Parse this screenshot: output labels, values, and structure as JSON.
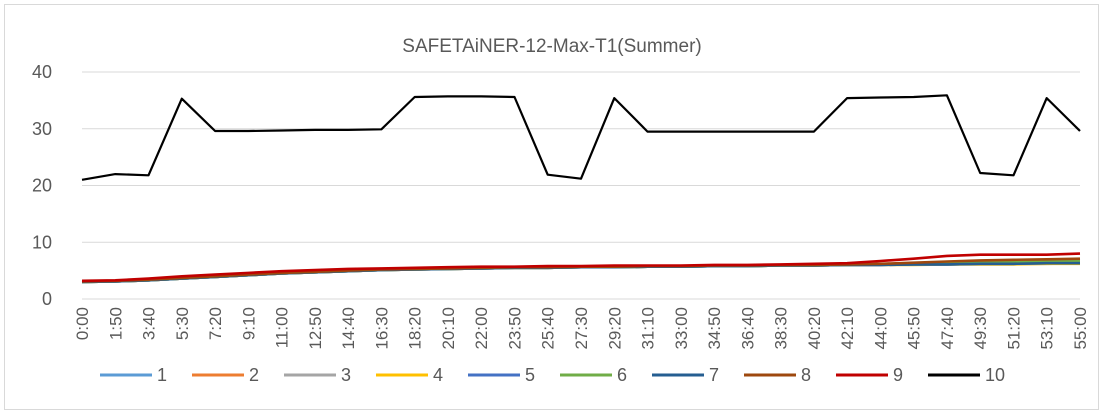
{
  "chart_data": {
    "type": "line",
    "title": "SAFETAiNER-12-Max-T1(Summer)",
    "xlabel": "",
    "ylabel": "",
    "ylim": [
      0,
      40
    ],
    "yticks": [
      0,
      10,
      20,
      30,
      40
    ],
    "grid": true,
    "legend_position": "bottom",
    "categories": [
      "0:00",
      "1:50",
      "3:40",
      "5:30",
      "7:20",
      "9:10",
      "11:00",
      "12:50",
      "14:40",
      "16:30",
      "18:20",
      "20:10",
      "22:00",
      "23:50",
      "25:40",
      "27:30",
      "29:20",
      "31:10",
      "33:00",
      "34:50",
      "36:40",
      "38:30",
      "40:20",
      "42:10",
      "44:00",
      "45:50",
      "47:40",
      "49:30",
      "51:20",
      "53:10",
      "55:00"
    ],
    "series": [
      {
        "name": "1",
        "color": "#5b9bd5",
        "values": [
          3.0,
          3.1,
          3.3,
          3.6,
          3.9,
          4.2,
          4.5,
          4.7,
          4.9,
          5.1,
          5.2,
          5.3,
          5.4,
          5.5,
          5.5,
          5.6,
          5.6,
          5.7,
          5.7,
          5.8,
          5.8,
          5.9,
          5.9,
          6.0,
          6.0,
          6.1,
          6.1,
          6.2,
          6.2,
          6.3,
          6.3
        ]
      },
      {
        "name": "2",
        "color": "#ed7d31",
        "values": [
          3.0,
          3.1,
          3.3,
          3.6,
          3.9,
          4.2,
          4.5,
          4.7,
          4.9,
          5.1,
          5.2,
          5.3,
          5.4,
          5.5,
          5.5,
          5.6,
          5.6,
          5.7,
          5.7,
          5.8,
          5.8,
          5.9,
          5.9,
          6.0,
          6.1,
          6.2,
          6.3,
          6.4,
          6.4,
          6.5,
          6.5
        ]
      },
      {
        "name": "3",
        "color": "#a5a5a5",
        "values": [
          3.0,
          3.1,
          3.3,
          3.6,
          3.9,
          4.2,
          4.5,
          4.7,
          4.9,
          5.1,
          5.2,
          5.3,
          5.4,
          5.5,
          5.5,
          5.6,
          5.6,
          5.7,
          5.7,
          5.8,
          5.8,
          5.9,
          5.9,
          6.0,
          6.0,
          6.1,
          6.1,
          6.2,
          6.2,
          6.2,
          6.3
        ]
      },
      {
        "name": "4",
        "color": "#ffc000",
        "values": [
          3.0,
          3.1,
          3.3,
          3.6,
          3.9,
          4.2,
          4.5,
          4.7,
          4.9,
          5.1,
          5.2,
          5.3,
          5.4,
          5.5,
          5.5,
          5.6,
          5.6,
          5.7,
          5.7,
          5.8,
          5.8,
          5.9,
          5.9,
          6.0,
          6.0,
          6.0,
          6.1,
          6.1,
          6.1,
          6.2,
          6.2
        ]
      },
      {
        "name": "5",
        "color": "#4472c4",
        "values": [
          3.0,
          3.1,
          3.3,
          3.6,
          3.9,
          4.2,
          4.5,
          4.7,
          4.9,
          5.1,
          5.2,
          5.3,
          5.4,
          5.5,
          5.5,
          5.6,
          5.6,
          5.7,
          5.7,
          5.8,
          5.8,
          5.9,
          5.9,
          6.0,
          6.0,
          6.1,
          6.1,
          6.2,
          6.2,
          6.3,
          6.3
        ]
      },
      {
        "name": "6",
        "color": "#70ad47",
        "values": [
          3.0,
          3.1,
          3.3,
          3.6,
          3.9,
          4.2,
          4.5,
          4.7,
          4.9,
          5.1,
          5.2,
          5.3,
          5.4,
          5.5,
          5.5,
          5.6,
          5.6,
          5.7,
          5.7,
          5.8,
          5.8,
          5.9,
          5.9,
          6.0,
          6.1,
          6.2,
          6.3,
          6.4,
          6.5,
          6.6,
          6.7
        ]
      },
      {
        "name": "7",
        "color": "#255e91",
        "values": [
          3.0,
          3.1,
          3.3,
          3.6,
          3.9,
          4.2,
          4.5,
          4.7,
          4.9,
          5.1,
          5.2,
          5.3,
          5.4,
          5.5,
          5.5,
          5.6,
          5.6,
          5.7,
          5.7,
          5.8,
          5.8,
          5.9,
          5.9,
          6.0,
          6.0,
          6.1,
          6.1,
          6.2,
          6.2,
          6.3,
          6.3
        ]
      },
      {
        "name": "8",
        "color": "#9e480e",
        "values": [
          3.1,
          3.2,
          3.4,
          3.7,
          4.0,
          4.3,
          4.6,
          4.8,
          5.0,
          5.2,
          5.3,
          5.4,
          5.5,
          5.6,
          5.6,
          5.7,
          5.7,
          5.8,
          5.8,
          5.9,
          5.9,
          6.0,
          6.0,
          6.1,
          6.2,
          6.4,
          6.6,
          6.8,
          6.9,
          7.0,
          7.1
        ]
      },
      {
        "name": "9",
        "color": "#c00000",
        "values": [
          3.2,
          3.3,
          3.6,
          4.0,
          4.3,
          4.6,
          4.9,
          5.1,
          5.3,
          5.4,
          5.5,
          5.6,
          5.7,
          5.7,
          5.8,
          5.8,
          5.9,
          5.9,
          5.9,
          6.0,
          6.0,
          6.1,
          6.2,
          6.3,
          6.7,
          7.1,
          7.6,
          7.8,
          7.8,
          7.8,
          8.0
        ]
      },
      {
        "name": "10",
        "color": "#000000",
        "values": [
          21.0,
          22.0,
          21.8,
          35.3,
          29.6,
          29.6,
          29.7,
          29.8,
          29.8,
          29.9,
          35.6,
          35.7,
          35.7,
          35.6,
          21.9,
          21.2,
          35.4,
          29.5,
          29.5,
          29.5,
          29.5,
          29.5,
          29.5,
          35.4,
          35.5,
          35.6,
          35.9,
          22.2,
          21.8,
          35.4,
          29.6
        ]
      }
    ]
  }
}
